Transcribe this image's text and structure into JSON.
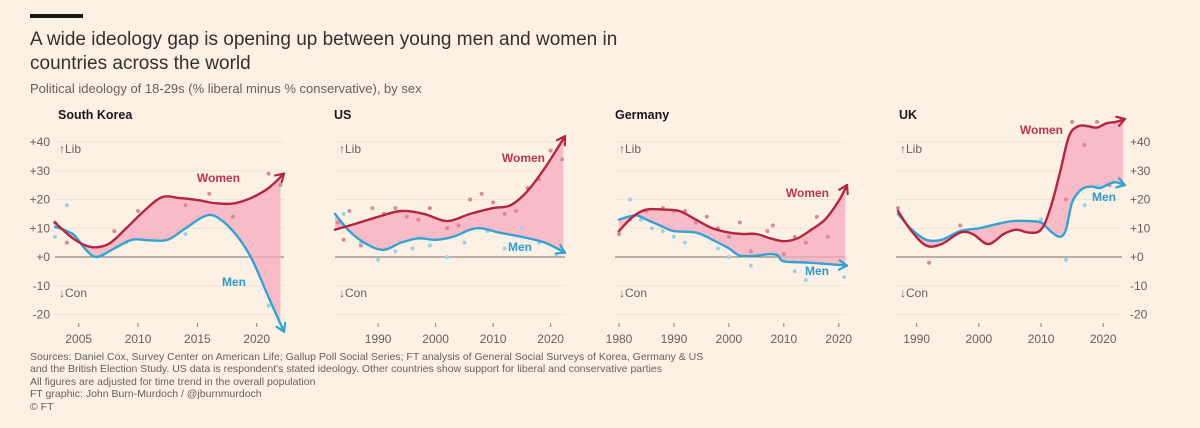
{
  "header": {
    "title": "A wide ideology gap is opening up between young men and women in countries across the world",
    "subtitle": "Political ideology of 18-29s (% liberal minus % conservative), by sex"
  },
  "footer": {
    "lines": [
      "Sources: Daniel Cox, Survey Center on American Life; Gallup Poll Social Series; FT analysis of General Social Surveys of Korea, Germany & US",
      "and the British Election Study. US data is respondent's stated ideology. Other countries show support for liberal and conservative parties",
      "All figures are adjusted for time trend in the overall population",
      "FT graphic: John Burn-Murdoch / @jburnmurdoch",
      "© FT"
    ]
  },
  "colors": {
    "women": "#b3263f",
    "men": "#35a3d1",
    "gap_fill": "#f7a8bc",
    "women_dots": "#d88a98",
    "men_dots": "#9fd0e6",
    "grid": "#efe3d6",
    "zero": "#7a6e66",
    "background": "#fdf1e6"
  },
  "chart_data": [
    {
      "type": "line",
      "title": "South Korea",
      "ylabel": "% liberal minus % conservative",
      "ylim": [
        -20,
        40
      ],
      "yticks": [
        "+40",
        "+30",
        "+20",
        "+10",
        "+0",
        "-10",
        "-20"
      ],
      "ytick_side": "left",
      "xlim": [
        2003,
        2022.3
      ],
      "xticks": [
        2005,
        2010,
        2015,
        2020
      ],
      "direction_labels": {
        "lib": "↑Lib",
        "con": "↓Con"
      },
      "series": [
        {
          "name": "Women",
          "x": [
            2003,
            2004.5,
            2006,
            2007.5,
            2009,
            2010.5,
            2012,
            2013.5,
            2015,
            2016.5,
            2018,
            2019.5,
            2021,
            2022.3
          ],
          "y": [
            12,
            6.5,
            3.5,
            4.5,
            10,
            16,
            20.8,
            20.5,
            19.8,
            18.7,
            18.6,
            20.5,
            24,
            29
          ]
        },
        {
          "name": "Men",
          "x": [
            2003,
            2004.5,
            2005.5,
            2006.5,
            2008,
            2009.5,
            2011,
            2012.5,
            2014,
            2015.5,
            2016.5,
            2018,
            2019.5,
            2021,
            2022.3
          ],
          "y": [
            10.5,
            8,
            3,
            0,
            3,
            6,
            5.8,
            6,
            10,
            14,
            14.2,
            9,
            0,
            -14,
            -26
          ]
        }
      ],
      "scatter_women": [
        [
          2003,
          12
        ],
        [
          2004,
          5
        ],
        [
          2008,
          9
        ],
        [
          2010,
          16
        ],
        [
          2014,
          18
        ],
        [
          2016,
          22
        ],
        [
          2018,
          14
        ],
        [
          2021,
          29
        ],
        [
          2022,
          25
        ]
      ],
      "scatter_men": [
        [
          2003,
          7
        ],
        [
          2004,
          18
        ],
        [
          2007,
          1
        ],
        [
          2009,
          5
        ],
        [
          2014,
          8
        ],
        [
          2021,
          -17
        ]
      ],
      "labels": {
        "women": "Women",
        "men": "Men"
      }
    },
    {
      "type": "line",
      "title": "US",
      "ylabel": "% liberal minus % conservative",
      "ylim": [
        -20,
        40
      ],
      "ytick_side": "none",
      "xlim": [
        1982.5,
        2022.5
      ],
      "xticks": [
        1990,
        2000,
        2010,
        2020
      ],
      "direction_labels": {
        "lib": "↑Lib",
        "con": "↓Con"
      },
      "series": [
        {
          "name": "Women",
          "x": [
            1982.5,
            1986,
            1990,
            1994,
            1998,
            2002,
            2006,
            2010,
            2013,
            2016,
            2019,
            2022.5
          ],
          "y": [
            9.5,
            11.5,
            14,
            16,
            15,
            12.5,
            15,
            17,
            18,
            23,
            31,
            42
          ]
        },
        {
          "name": "Men",
          "x": [
            1982.5,
            1985,
            1988,
            1991,
            1994,
            1997,
            2000,
            2003,
            2006,
            2008,
            2011,
            2015,
            2019,
            2022.5
          ],
          "y": [
            15,
            9,
            4.5,
            2.5,
            5,
            6.5,
            6,
            7,
            9.5,
            10,
            8.5,
            7,
            5,
            1.5
          ]
        }
      ],
      "scatter_women": [
        [
          1983,
          12
        ],
        [
          1984,
          6
        ],
        [
          1985,
          16
        ],
        [
          1987,
          4
        ],
        [
          1989,
          17
        ],
        [
          1991,
          15
        ],
        [
          1993,
          17
        ],
        [
          1995,
          14
        ],
        [
          1997,
          13
        ],
        [
          1999,
          17
        ],
        [
          2002,
          10
        ],
        [
          2004,
          11
        ],
        [
          2006,
          20
        ],
        [
          2008,
          22
        ],
        [
          2010,
          19
        ],
        [
          2012,
          15
        ],
        [
          2014,
          16
        ],
        [
          2016,
          24
        ],
        [
          2018,
          27
        ],
        [
          2020,
          37
        ],
        [
          2022,
          34
        ]
      ],
      "scatter_men": [
        [
          1984,
          15
        ],
        [
          1987,
          5
        ],
        [
          1990,
          -1
        ],
        [
          1993,
          2
        ],
        [
          1996,
          3
        ],
        [
          1999,
          4
        ],
        [
          2002,
          0
        ],
        [
          2005,
          5
        ],
        [
          2009,
          9
        ],
        [
          2012,
          3
        ],
        [
          2015,
          10
        ],
        [
          2018,
          5
        ],
        [
          2021,
          1
        ]
      ],
      "labels": {
        "women": "Women",
        "men": "Men"
      }
    },
    {
      "type": "line",
      "title": "Germany",
      "ylabel": "% liberal minus % conservative",
      "ylim": [
        -20,
        40
      ],
      "ytick_side": "none",
      "xlim": [
        1980,
        2021.5
      ],
      "xticks": [
        1980,
        1990,
        2000,
        2010,
        2020
      ],
      "direction_labels": {
        "lib": "↑Lib",
        "con": "↓Con"
      },
      "series": [
        {
          "name": "Women",
          "x": [
            1980,
            1982.5,
            1985,
            1988,
            1991,
            1994,
            1997,
            2000,
            2002.5,
            2005,
            2007.5,
            2010,
            2012.5,
            2015,
            2017.5,
            2020,
            2021.5
          ],
          "y": [
            9,
            14,
            16.5,
            16.5,
            16,
            13,
            10,
            8.5,
            8,
            8,
            6.5,
            5.5,
            6.5,
            9.5,
            13,
            19.5,
            25
          ]
        },
        {
          "name": "Men",
          "x": [
            1980,
            1983,
            1985,
            1988,
            1990,
            1994,
            1997,
            2000,
            2002,
            2005,
            2007.5,
            2009,
            2010,
            2015,
            2021.5
          ],
          "y": [
            13,
            14.5,
            13,
            10.5,
            9,
            8.5,
            6,
            3,
            0.5,
            0.5,
            1,
            0.5,
            -1.5,
            -2,
            -3
          ]
        }
      ],
      "scatter_women": [
        [
          1980,
          8
        ],
        [
          1982,
          13
        ],
        [
          1985,
          16
        ],
        [
          1988,
          17
        ],
        [
          1990,
          16
        ],
        [
          1992,
          16
        ],
        [
          1994,
          12
        ],
        [
          1996,
          14
        ],
        [
          1998,
          10
        ],
        [
          2000,
          7
        ],
        [
          2002,
          12
        ],
        [
          2004,
          2
        ],
        [
          2007,
          9
        ],
        [
          2008,
          11
        ],
        [
          2010,
          1
        ],
        [
          2012,
          7
        ],
        [
          2014,
          5
        ],
        [
          2016,
          14
        ],
        [
          2018,
          7
        ]
      ],
      "scatter_men": [
        [
          1982,
          20
        ],
        [
          1984,
          13
        ],
        [
          1986,
          10
        ],
        [
          1988,
          9
        ],
        [
          1990,
          7
        ],
        [
          1992,
          5
        ],
        [
          1998,
          3
        ],
        [
          2000,
          0
        ],
        [
          2004,
          -3
        ],
        [
          2010,
          -1
        ],
        [
          2012,
          -5
        ],
        [
          2014,
          -8
        ],
        [
          2021,
          -7
        ]
      ],
      "labels": {
        "women": "Women",
        "men": "Men"
      }
    },
    {
      "type": "line",
      "title": "UK",
      "ylabel": "% liberal minus % conservative",
      "ylim": [
        -20,
        40
      ],
      "yticks": [
        "+40",
        "+30",
        "+20",
        "+10",
        "+0",
        "-10",
        "-20"
      ],
      "ytick_side": "right",
      "xlim": [
        1987,
        2023.5
      ],
      "xticks": [
        1990,
        2000,
        2010,
        2020
      ],
      "direction_labels": {
        "lib": "↑Lib",
        "con": "↓Con"
      },
      "series": [
        {
          "name": "Women",
          "x": [
            1987,
            1989,
            1991.5,
            1994,
            1997,
            1999,
            2001.5,
            2004,
            2006,
            2008,
            2010,
            2011.5,
            2013,
            2014.5,
            2016,
            2017.5,
            2019,
            2020.5,
            2022,
            2023.5
          ],
          "y": [
            16,
            9.5,
            4,
            4.5,
            8.5,
            8,
            4.5,
            8,
            9.5,
            8.5,
            9.5,
            17,
            29,
            42,
            45.5,
            45.5,
            45,
            46.5,
            47,
            48
          ]
        },
        {
          "name": "Men",
          "x": [
            1987,
            1989,
            1991.5,
            1994,
            1997,
            2000,
            2003,
            2005.5,
            2008,
            2010,
            2011.5,
            2013,
            2014,
            2015,
            2016.5,
            2018,
            2019.5,
            2021,
            2022,
            2023.5
          ],
          "y": [
            15,
            10,
            6,
            6,
            9,
            10,
            11.5,
            12.5,
            12.5,
            12,
            9,
            7,
            9.5,
            19,
            23.5,
            24.5,
            24,
            25.5,
            26,
            25
          ]
        }
      ],
      "scatter_women": [
        [
          1987,
          17
        ],
        [
          1992,
          -2
        ],
        [
          1997,
          11
        ],
        [
          2014,
          20
        ],
        [
          2015,
          47
        ],
        [
          2017,
          39
        ],
        [
          2019,
          47
        ],
        [
          2021,
          25
        ]
      ],
      "scatter_men": [
        [
          2010,
          13
        ],
        [
          2014,
          -1
        ],
        [
          2017,
          18
        ],
        [
          2019,
          25
        ]
      ],
      "labels": {
        "women": "Women",
        "men": "Men"
      }
    }
  ]
}
